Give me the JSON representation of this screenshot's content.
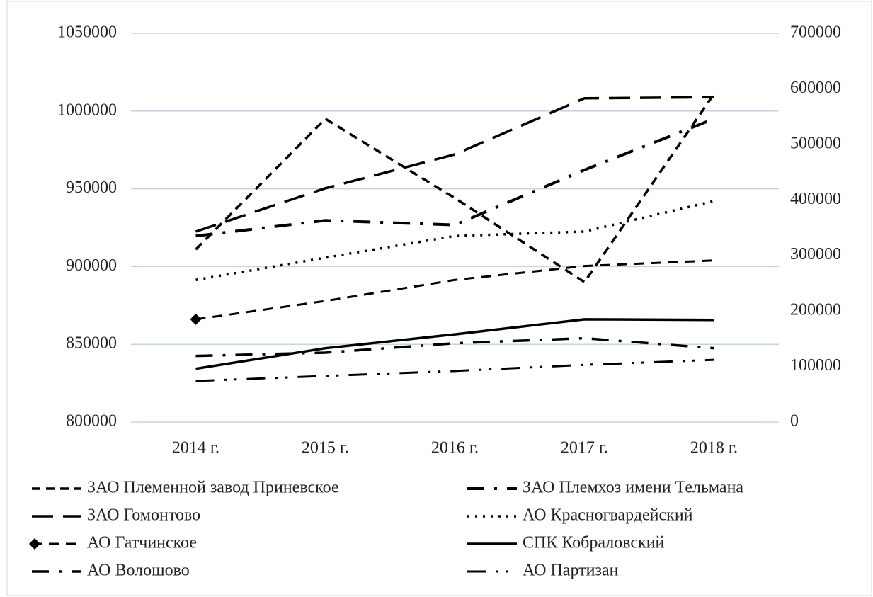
{
  "chart_data": {
    "type": "line",
    "categories": [
      "2014 г.",
      "2015 г.",
      "2016 г.",
      "2017 г.",
      "2018 г."
    ],
    "ylim": [
      800000,
      1050000
    ],
    "yticks": [
      800000,
      850000,
      900000,
      950000,
      1000000,
      1050000
    ],
    "y2lim": [
      0,
      700000
    ],
    "y2ticks": [
      0,
      100000,
      200000,
      300000,
      400000,
      500000,
      600000,
      700000
    ],
    "grid": true,
    "legend": "bottom",
    "series": [
      {
        "name": "ЗАО Племенной завод Приневское",
        "color": "#000000",
        "values": [
          911000,
          995000,
          944000,
          890000,
          1011000
        ]
      },
      {
        "name": "ЗАО Племхоз имени Тельмана",
        "color": "#000000",
        "axis": "y2",
        "values": [
          335000,
          363000,
          355000,
          454000,
          546000
        ]
      },
      {
        "name": "ЗАО Гомонтово",
        "color": "#000000",
        "axis": "y2",
        "values": [
          343000,
          421000,
          482000,
          583000,
          585000
        ]
      },
      {
        "name": "АО Красногвардейский",
        "color": "#000000",
        "axis": "y2",
        "values": [
          256000,
          296000,
          335000,
          343000,
          398000
        ]
      },
      {
        "name": "АО Гатчинское",
        "color": "#000000",
        "axis": "y2",
        "values": [
          185000,
          218000,
          256000,
          281000,
          291000
        ]
      },
      {
        "name": "СПК Кобраловский",
        "color": "#000000",
        "axis": "y2",
        "values": [
          96000,
          133000,
          158000,
          185000,
          184000
        ]
      },
      {
        "name": "АО Волошово",
        "color": "#000000",
        "axis": "y2",
        "values": [
          119000,
          125000,
          142000,
          151000,
          133000
        ]
      },
      {
        "name": "АО Партизан",
        "color": "#000000",
        "axis": "y2",
        "values": [
          74000,
          83000,
          92000,
          103000,
          112000
        ]
      }
    ]
  }
}
